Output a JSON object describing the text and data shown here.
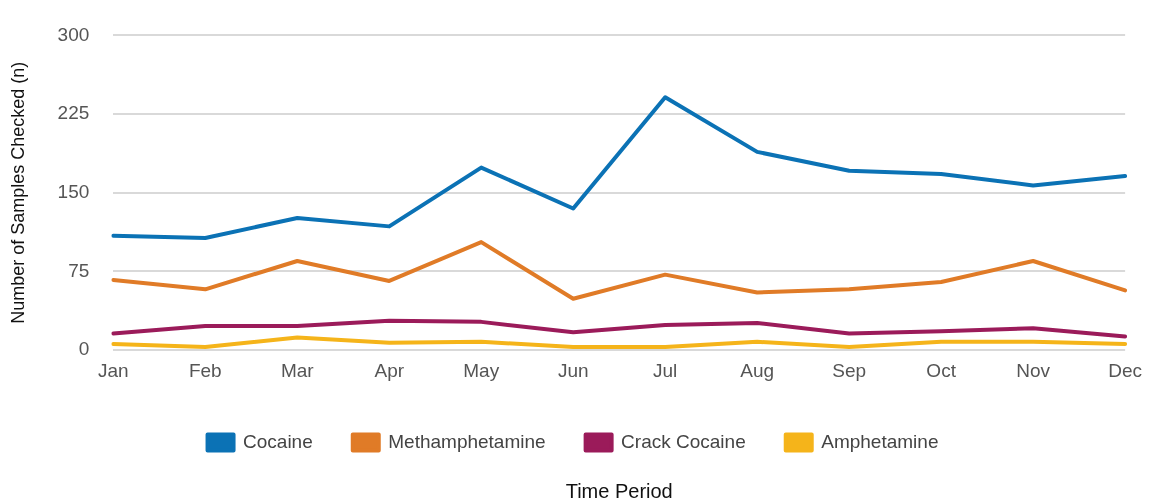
{
  "chart_data": {
    "type": "line",
    "xlabel": "Time Period",
    "ylabel": "Number of Samples Checked (n)",
    "categories": [
      "Jan",
      "Feb",
      "Mar",
      "Apr",
      "May",
      "Jun",
      "Jul",
      "Aug",
      "Sep",
      "Oct",
      "Nov",
      "Dec"
    ],
    "series": [
      {
        "name": "Cocaine",
        "color": "#0b72b5",
        "values": [
          109,
          107,
          126,
          118,
          174,
          135,
          241,
          189,
          171,
          168,
          157,
          166
        ]
      },
      {
        "name": "Methamphetamine",
        "color": "#e07b27",
        "values": [
          67,
          58,
          85,
          66,
          103,
          49,
          72,
          55,
          58,
          65,
          85,
          57
        ]
      },
      {
        "name": "Crack Cocaine",
        "color": "#9b1b5a",
        "values": [
          16,
          23,
          23,
          28,
          27,
          17,
          24,
          26,
          16,
          18,
          21,
          13
        ]
      },
      {
        "name": "Amphetamine",
        "color": "#f5b41a",
        "values": [
          6,
          3,
          12,
          7,
          8,
          3,
          3,
          8,
          3,
          8,
          8,
          6
        ]
      }
    ],
    "ylim": [
      0,
      300
    ],
    "yticks": [
      0,
      75,
      150,
      225,
      300
    ],
    "grid": "y",
    "legend": "bottom",
    "marker": "none",
    "line_style": "solid"
  }
}
